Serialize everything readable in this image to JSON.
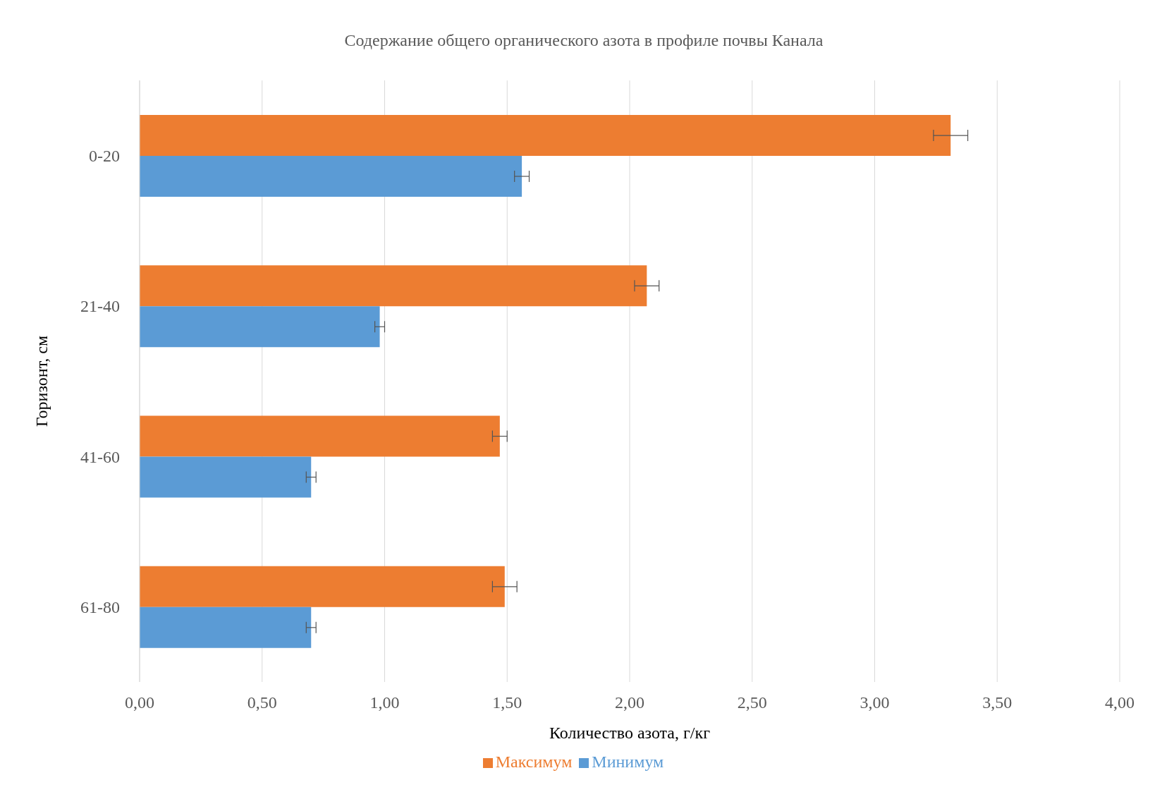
{
  "chart_data": {
    "type": "bar",
    "orientation": "horizontal",
    "title": "Содержание общего органического азота в профиле почвы Канала",
    "xlabel": "Количество азота, г/кг",
    "ylabel": "Горизонт, см",
    "categories": [
      "0-20",
      "21-40",
      "41-60",
      "61-80"
    ],
    "series": [
      {
        "name": "Максимум",
        "color": "#ed7d31",
        "values": [
          3.31,
          2.07,
          1.47,
          1.49
        ],
        "errors": [
          0.07,
          0.05,
          0.03,
          0.05
        ]
      },
      {
        "name": "Минимум",
        "color": "#5b9bd5",
        "values": [
          1.56,
          0.98,
          0.7,
          0.7
        ],
        "errors": [
          0.03,
          0.02,
          0.02,
          0.02
        ]
      }
    ],
    "xlim": [
      0,
      4
    ],
    "xticks": [
      {
        "value": 0,
        "label": "0,00"
      },
      {
        "value": 0.5,
        "label": "0,50"
      },
      {
        "value": 1,
        "label": "1,00"
      },
      {
        "value": 1.5,
        "label": "1,50"
      },
      {
        "value": 2,
        "label": "2,00"
      },
      {
        "value": 2.5,
        "label": "2,50"
      },
      {
        "value": 3,
        "label": "3,00"
      },
      {
        "value": 3.5,
        "label": "3,50"
      },
      {
        "value": 4,
        "label": "4,00"
      }
    ],
    "grid": "x",
    "legend": "bottom"
  }
}
